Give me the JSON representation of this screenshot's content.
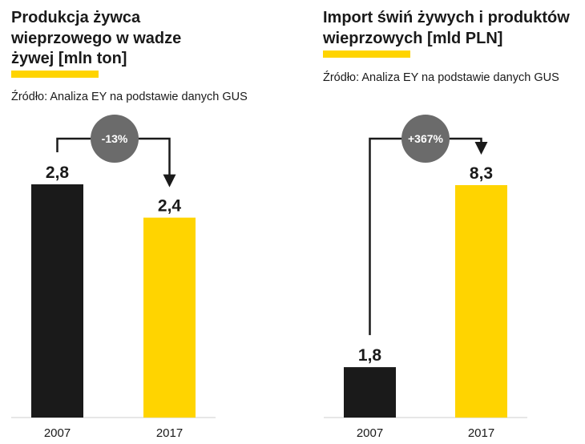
{
  "colors": {
    "accent": "#ffd400",
    "dark": "#1a1a1a",
    "badge": "#6b6b6b",
    "badge_text": "#ffffff"
  },
  "chart_data": [
    {
      "type": "bar",
      "title": "Produkcja żywca\nwieprzowego w wadze\nżywej [mln ton]",
      "source": "Źródło: Analiza EY na podstawie danych GUS",
      "categories": [
        "2007",
        "2017"
      ],
      "values": [
        2.8,
        2.4
      ],
      "value_labels": [
        "2,8",
        "2,4"
      ],
      "bar_colors": [
        "#1a1a1a",
        "#ffd400"
      ],
      "change_label": "-13%",
      "ylim": [
        0,
        2.8
      ],
      "xlabel": "",
      "ylabel": ""
    },
    {
      "type": "bar",
      "title": "Import świń żywych i produktów\nwieprzowych [mld PLN]",
      "source": "Źródło: Analiza EY na podstawie danych GUS",
      "categories": [
        "2007",
        "2017"
      ],
      "values": [
        1.8,
        8.3
      ],
      "value_labels": [
        "1,8",
        "8,3"
      ],
      "bar_colors": [
        "#1a1a1a",
        "#ffd400"
      ],
      "change_label": "+367%",
      "ylim": [
        0,
        8.3
      ],
      "xlabel": "",
      "ylabel": ""
    }
  ]
}
